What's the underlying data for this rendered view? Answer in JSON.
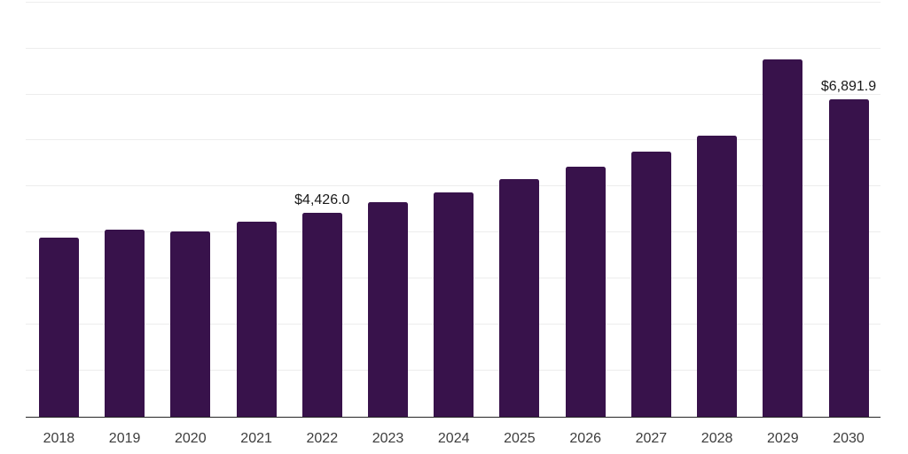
{
  "chart_data": {
    "type": "bar",
    "title": "",
    "xlabel": "",
    "ylabel": "",
    "categories": [
      "2018",
      "2019",
      "2020",
      "2021",
      "2022",
      "2023",
      "2024",
      "2025",
      "2026",
      "2027",
      "2028",
      "2029",
      "2030"
    ],
    "values": [
      3876,
      4050,
      4011,
      4223,
      4426.0,
      4647,
      4859,
      5148,
      5418,
      5745,
      6092,
      7758,
      6891.9
    ],
    "data_labels": {
      "2022": "$4,426.0",
      "2030": "$6,891.9"
    },
    "ylim": [
      0,
      9000
    ],
    "grid_interval": 1000,
    "grid": "horizontal",
    "y_tick_labels_visible": false,
    "legend": "none",
    "colors": {
      "bar": "#38124B",
      "grid_line": "#EDEDED",
      "axis_line": "#262626",
      "tick_label": "#3D3D3D",
      "value_label": "#1A1A1A",
      "background": "#FFFFFF"
    }
  }
}
